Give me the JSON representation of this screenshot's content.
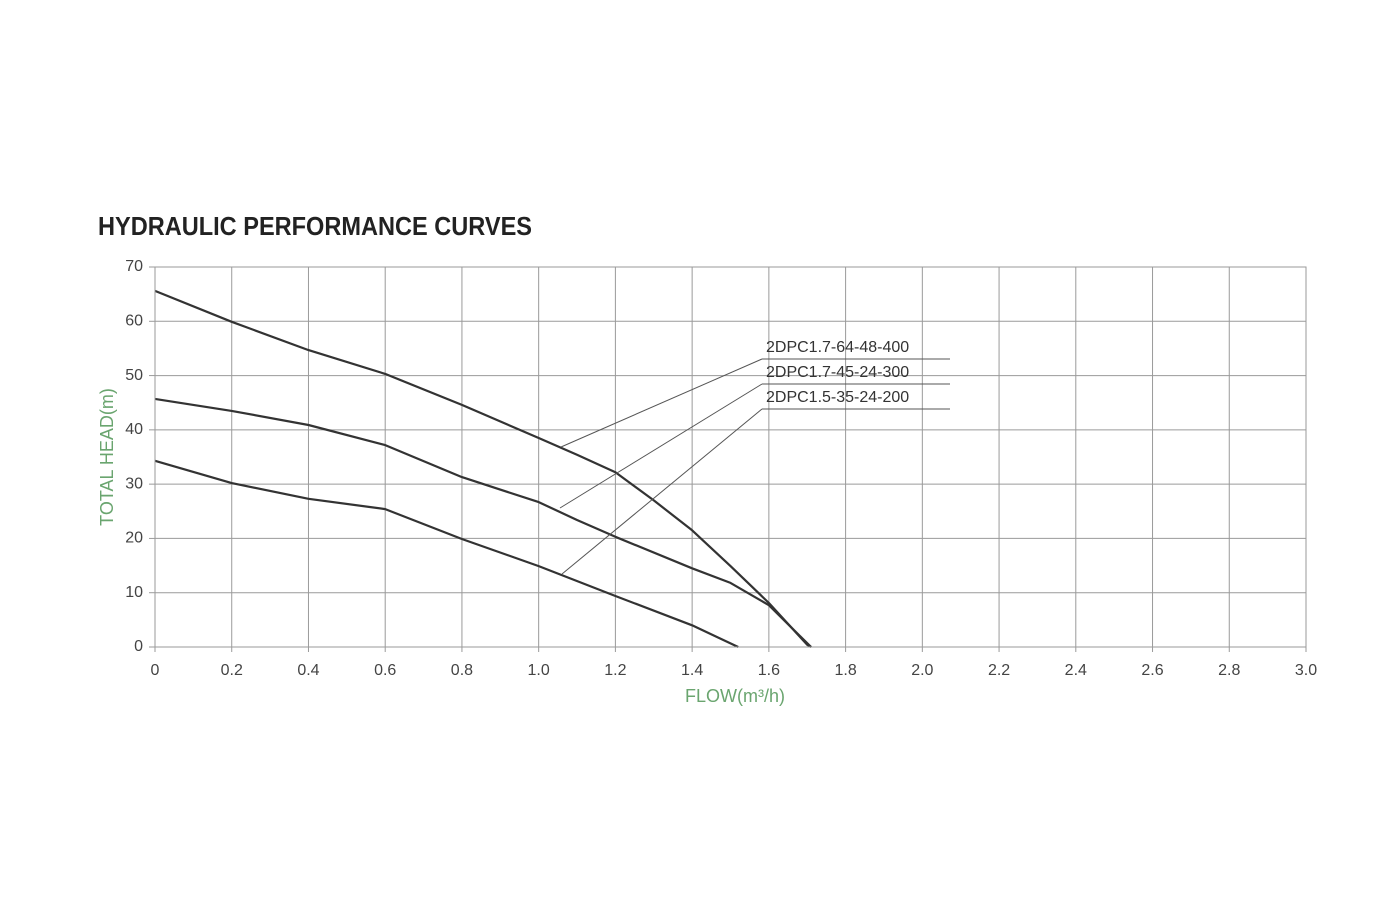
{
  "chart_data": {
    "type": "line",
    "title": "HYDRAULIC PERFORMANCE CURVES",
    "x_label": "FLOW(m³/h)",
    "y_label": "TOTAL HEAD(m)",
    "xlim": [
      0,
      3
    ],
    "ylim": [
      0,
      70
    ],
    "xticks": [
      0,
      0.2,
      0.4,
      0.6,
      0.8,
      {
        "value": 1,
        "label": "1.0"
      },
      1.2,
      1.4,
      1.6,
      1.8,
      {
        "value": 2,
        "label": "2.0"
      },
      2.2,
      2.4,
      2.6,
      2.8,
      {
        "value": 3,
        "label": "3.0"
      }
    ],
    "yticks": [
      0,
      10,
      20,
      30,
      40,
      50,
      60,
      70
    ],
    "grid": true,
    "series": [
      {
        "name": "2DPC1.7-64-48-400",
        "color": "#333333",
        "x": [
          0,
          0.2,
          0.4,
          0.6,
          0.8,
          1.0,
          1.1,
          1.2,
          1.3,
          1.4,
          1.5,
          1.6,
          1.7,
          1.71
        ],
        "values": [
          65.6,
          59.9,
          54.7,
          50.3,
          44.6,
          38.5,
          35.4,
          32.2,
          27,
          21.5,
          14.9,
          8.1,
          0.4,
          0
        ]
      },
      {
        "name": "2DPC1.7-45-24-300",
        "color": "#333333",
        "x": [
          0,
          0.2,
          0.4,
          0.6,
          0.8,
          1.0,
          1.1,
          1.2,
          1.4,
          1.5,
          1.6,
          1.7,
          1.71
        ],
        "values": [
          45.7,
          43.5,
          40.9,
          37.2,
          31.3,
          26.7,
          23.4,
          20.3,
          14.5,
          11.8,
          7.7,
          0.7,
          0
        ]
      },
      {
        "name": "2DPC1.5-35-24-200",
        "color": "#333333",
        "x": [
          0,
          0.2,
          0.4,
          0.6,
          0.8,
          1.0,
          1.2,
          1.4,
          1.52
        ],
        "values": [
          34.3,
          30.2,
          27.3,
          25.4,
          19.9,
          14.9,
          9.4,
          4,
          0
        ]
      }
    ]
  }
}
